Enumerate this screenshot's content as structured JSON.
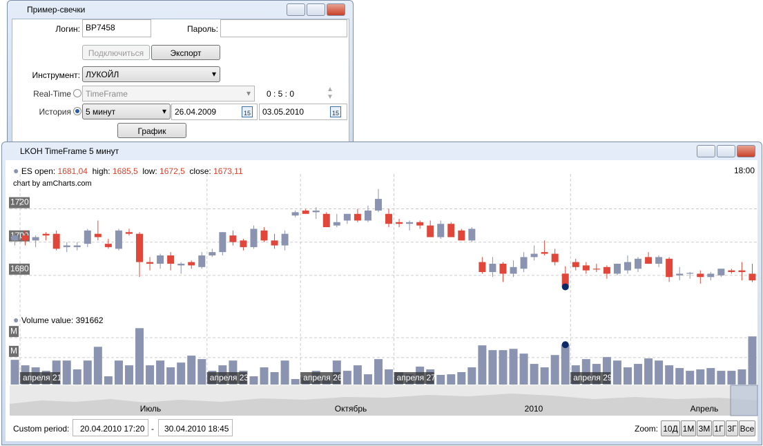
{
  "form_window": {
    "title": "Пример-свечки",
    "login_label": "Логин:",
    "login": "BP7458",
    "password_label": "Пароль:",
    "connect": "Подключиться",
    "export": "Экспорт",
    "instrument_label": "Инструмент:",
    "instrument": "ЛУКОЙЛ",
    "realtime_label": "Real-Time",
    "timeframe": "TimeFrame",
    "time": "0 : 5 : 0",
    "history_label": "История",
    "history_tf": "5 минут",
    "date_from": "26.04.2009",
    "date_to": "03.05.2010",
    "calendar_day": "15",
    "chart_button": "График"
  },
  "chart_window": {
    "title": "LKOH TimeFrame 5 минут",
    "legend": {
      "name": "ES",
      "open_label": "open:",
      "open": "1681,04",
      "high_label": "high:",
      "high": "1685,5",
      "low_label": "low:",
      "low": "1672,5",
      "close_label": "close:",
      "close": "1673,11"
    },
    "time": "18:00",
    "credit": "chart by amCharts.com",
    "volume_legend": {
      "name": "Volume",
      "value_label": "value:",
      "value": "391662"
    },
    "navigator_labels": [
      "Июль",
      "Октябрь",
      "2010",
      "Апрель"
    ],
    "custom_period_label": "Custom period:",
    "period_from": "20.04.2010 17:20",
    "period_sep": "-",
    "period_to": "30.04.2010 18:45",
    "zoom_label": "Zoom:",
    "zoom_buttons": [
      "10Д",
      "1М",
      "3М",
      "1Г",
      "3Г",
      "Все"
    ]
  },
  "chart_data": [
    {
      "type": "candlestick",
      "up_color": "#8a93b0",
      "down_color": "#e0473a",
      "cursor_index": 53,
      "grid": true,
      "ylim": [
        1660,
        1741
      ],
      "yticks": [
        1680,
        1700,
        1720
      ],
      "open": [
        1701,
        1704,
        1701,
        1705,
        1705,
        1697,
        1697,
        1699,
        1705,
        1699,
        1696,
        1706,
        1705,
        1688,
        1687,
        1692,
        1686,
        1688,
        1685,
        1692,
        1694,
        1704,
        1701,
        1697,
        1707,
        1701,
        1698,
        1716,
        1719,
        1718,
        1717,
        1710,
        1713,
        1717,
        1713,
        1719,
        1717,
        1712,
        1711,
        1712,
        1710,
        1703,
        1711,
        1707,
        1701,
        1688,
        1682,
        1687,
        1681,
        1684,
        1691,
        1694,
        1693,
        1681.04,
        1688,
        1686,
        1684,
        1685,
        1681,
        1683,
        1684,
        1691,
        1687,
        1690,
        1680,
        1681,
        1681,
        1679,
        1680,
        1683,
        1683,
        1681
      ],
      "high": [
        1706,
        1707,
        1704,
        1706,
        1707,
        1700,
        1700,
        1708,
        1713,
        1702,
        1708,
        1708,
        1706,
        1691,
        1693,
        1694,
        1688,
        1689,
        1694,
        1696,
        1706,
        1707,
        1702,
        1710,
        1709,
        1705,
        1707,
        1719,
        1720,
        1721,
        1718,
        1717,
        1717,
        1720,
        1722,
        1732,
        1720,
        1714,
        1713,
        1713,
        1713,
        1713,
        1712,
        1708,
        1709,
        1691,
        1691,
        1688,
        1689,
        1694,
        1698,
        1701,
        1696,
        1685.5,
        1690,
        1688,
        1687,
        1686,
        1687,
        1692,
        1691,
        1694,
        1692,
        1691,
        1685,
        1682,
        1683,
        1682,
        1684,
        1684,
        1688,
        1687
      ],
      "low": [
        1698,
        1698,
        1697,
        1701,
        1695,
        1694,
        1695,
        1697,
        1701,
        1696,
        1695,
        1704,
        1679,
        1683,
        1684,
        1683,
        1681,
        1684,
        1684,
        1691,
        1692,
        1698,
        1695,
        1696,
        1700,
        1696,
        1695,
        1715,
        1717,
        1714,
        1709,
        1709,
        1711,
        1712,
        1712,
        1718,
        1709,
        1709,
        1707,
        1708,
        1703,
        1702,
        1703,
        1701,
        1700,
        1681,
        1679,
        1676,
        1679,
        1682,
        1689,
        1692,
        1686,
        1672.5,
        1683,
        1681,
        1682,
        1678,
        1680,
        1681,
        1682,
        1687,
        1685,
        1676,
        1677,
        1678,
        1675,
        1677,
        1679,
        1681,
        1677,
        1676
      ],
      "close": [
        1704,
        1701,
        1703,
        1704,
        1696,
        1698,
        1698,
        1707,
        1703,
        1697,
        1707,
        1705,
        1688,
        1687,
        1692,
        1687,
        1687,
        1686,
        1692,
        1694,
        1706,
        1700,
        1697,
        1708,
        1701,
        1698,
        1705,
        1718,
        1717,
        1719,
        1709,
        1712,
        1717,
        1713,
        1719,
        1726,
        1711,
        1711,
        1712,
        1710,
        1703,
        1711,
        1703,
        1701,
        1708,
        1682,
        1687,
        1681,
        1685,
        1691,
        1693,
        1693,
        1688,
        1673.11,
        1685,
        1683,
        1683.5,
        1681,
        1687,
        1688,
        1690,
        1687,
        1691,
        1679,
        1681,
        1681.5,
        1679,
        1681,
        1684,
        1682,
        1682,
        1677
      ]
    },
    {
      "type": "bar",
      "color": "#8a93b0",
      "cursor_color": "#0d2a66",
      "cursor_index": 53,
      "grid": true,
      "ylim": [
        0,
        590000
      ],
      "yticks": [
        {
          "value": 265000,
          "label": "M"
        },
        {
          "value": 460000,
          "label": "M"
        }
      ],
      "categories": [
        null,
        "апреля 21",
        null,
        null,
        null,
        null,
        null,
        null,
        null,
        null,
        null,
        null,
        null,
        null,
        null,
        null,
        null,
        null,
        null,
        "апреля 23",
        null,
        null,
        null,
        null,
        null,
        null,
        null,
        null,
        "апреля 26",
        null,
        null,
        null,
        null,
        null,
        null,
        null,
        null,
        "апреля 27",
        null,
        null,
        null,
        null,
        null,
        null,
        null,
        null,
        null,
        null,
        null,
        null,
        null,
        null,
        null,
        null,
        "апреля 29",
        null,
        null,
        null,
        null,
        null,
        null,
        null,
        null,
        null,
        null,
        null,
        null,
        null,
        null,
        null,
        null,
        null
      ],
      "values": [
        243000,
        189000,
        169000,
        135000,
        236000,
        236000,
        149000,
        236000,
        371000,
        81000,
        236000,
        189000,
        554000,
        189000,
        236000,
        169000,
        216000,
        284000,
        250000,
        135000,
        189000,
        236000,
        135000,
        81000,
        169000,
        122000,
        236000,
        54000,
        68000,
        135000,
        81000,
        236000,
        135000,
        189000,
        101000,
        250000,
        149000,
        122000,
        101000,
        176000,
        149000,
        95000,
        101000,
        122000,
        169000,
        385000,
        338000,
        338000,
        351000,
        304000,
        203000,
        169000,
        290000,
        391662,
        189000,
        250000,
        203000,
        270000,
        236000,
        169000,
        203000,
        257000,
        236000,
        189000,
        162000,
        135000,
        149000,
        162000,
        135000,
        135000,
        149000,
        473000
      ]
    }
  ]
}
